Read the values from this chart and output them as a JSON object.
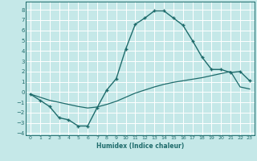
{
  "title": "",
  "xlabel": "Humidex (Indice chaleur)",
  "xlim": [
    -0.5,
    23.5
  ],
  "ylim": [
    -4.2,
    8.8
  ],
  "xticks": [
    0,
    1,
    2,
    3,
    4,
    5,
    6,
    7,
    8,
    9,
    10,
    11,
    12,
    13,
    14,
    15,
    16,
    17,
    18,
    19,
    20,
    21,
    22,
    23
  ],
  "yticks": [
    -4,
    -3,
    -2,
    -1,
    0,
    1,
    2,
    3,
    4,
    5,
    6,
    7,
    8
  ],
  "bg_color": "#c5e8e8",
  "grid_color": "#ffffff",
  "line_color": "#1e6b6b",
  "line1_x": [
    0,
    1,
    2,
    3,
    4,
    5,
    6,
    7,
    8,
    9,
    10,
    11,
    12,
    13,
    14,
    15,
    16,
    17,
    18,
    19,
    20,
    21,
    22,
    23
  ],
  "line1_y": [
    -0.2,
    -0.8,
    -1.4,
    -2.5,
    -2.7,
    -3.3,
    -3.3,
    -1.5,
    0.2,
    1.3,
    4.2,
    6.6,
    7.2,
    7.9,
    7.9,
    7.2,
    6.5,
    5.0,
    3.4,
    2.2,
    2.2,
    1.9,
    2.0,
    1.1
  ],
  "line2_x": [
    0,
    1,
    2,
    3,
    4,
    5,
    6,
    7,
    8,
    9,
    10,
    11,
    12,
    13,
    14,
    15,
    16,
    17,
    18,
    19,
    20,
    21,
    22,
    23
  ],
  "line2_y": [
    -0.2,
    -0.5,
    -0.8,
    -1.0,
    -1.2,
    -1.4,
    -1.55,
    -1.45,
    -1.2,
    -0.9,
    -0.5,
    -0.1,
    0.2,
    0.5,
    0.75,
    0.95,
    1.1,
    1.25,
    1.4,
    1.6,
    1.8,
    2.0,
    0.5,
    0.3
  ]
}
